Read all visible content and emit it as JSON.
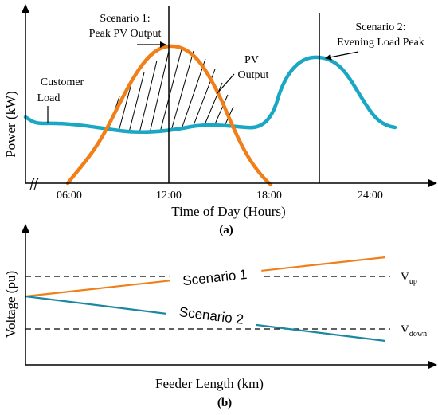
{
  "figure_a": {
    "ylabel": "Power (kW)",
    "xlabel": "Time of Day (Hours)",
    "caption": "(a)",
    "ticks": [
      "06:00",
      "12:00",
      "18:00",
      "24:00"
    ],
    "annotations": {
      "scenario1_line1": "Scenario 1:",
      "scenario1_line2": "Peak PV Output",
      "scenario2_line1": "Scenario 2:",
      "scenario2_line2": "Evening Load Peak",
      "pv_line1": "PV",
      "pv_line2": "Output",
      "customer_line1": "Customer",
      "customer_line2": "Load"
    },
    "colors": {
      "load": "#1aa7c4",
      "pv": "#f07f1a",
      "axis": "#000000"
    }
  },
  "figure_b": {
    "ylabel": "Voltage (pu)",
    "xlabel": "Feeder Length (km)",
    "caption": "(b)",
    "line_labels": {
      "scenario1": "Scenario 1",
      "scenario2": "Scenario 2"
    },
    "thresholds": {
      "vup_main": "V",
      "vup_sub": "up",
      "vdown_main": "V",
      "vdown_sub": "down"
    },
    "colors": {
      "scenario1": "#f07f1a",
      "scenario2": "#1a88a0",
      "threshold": "#000000"
    }
  }
}
